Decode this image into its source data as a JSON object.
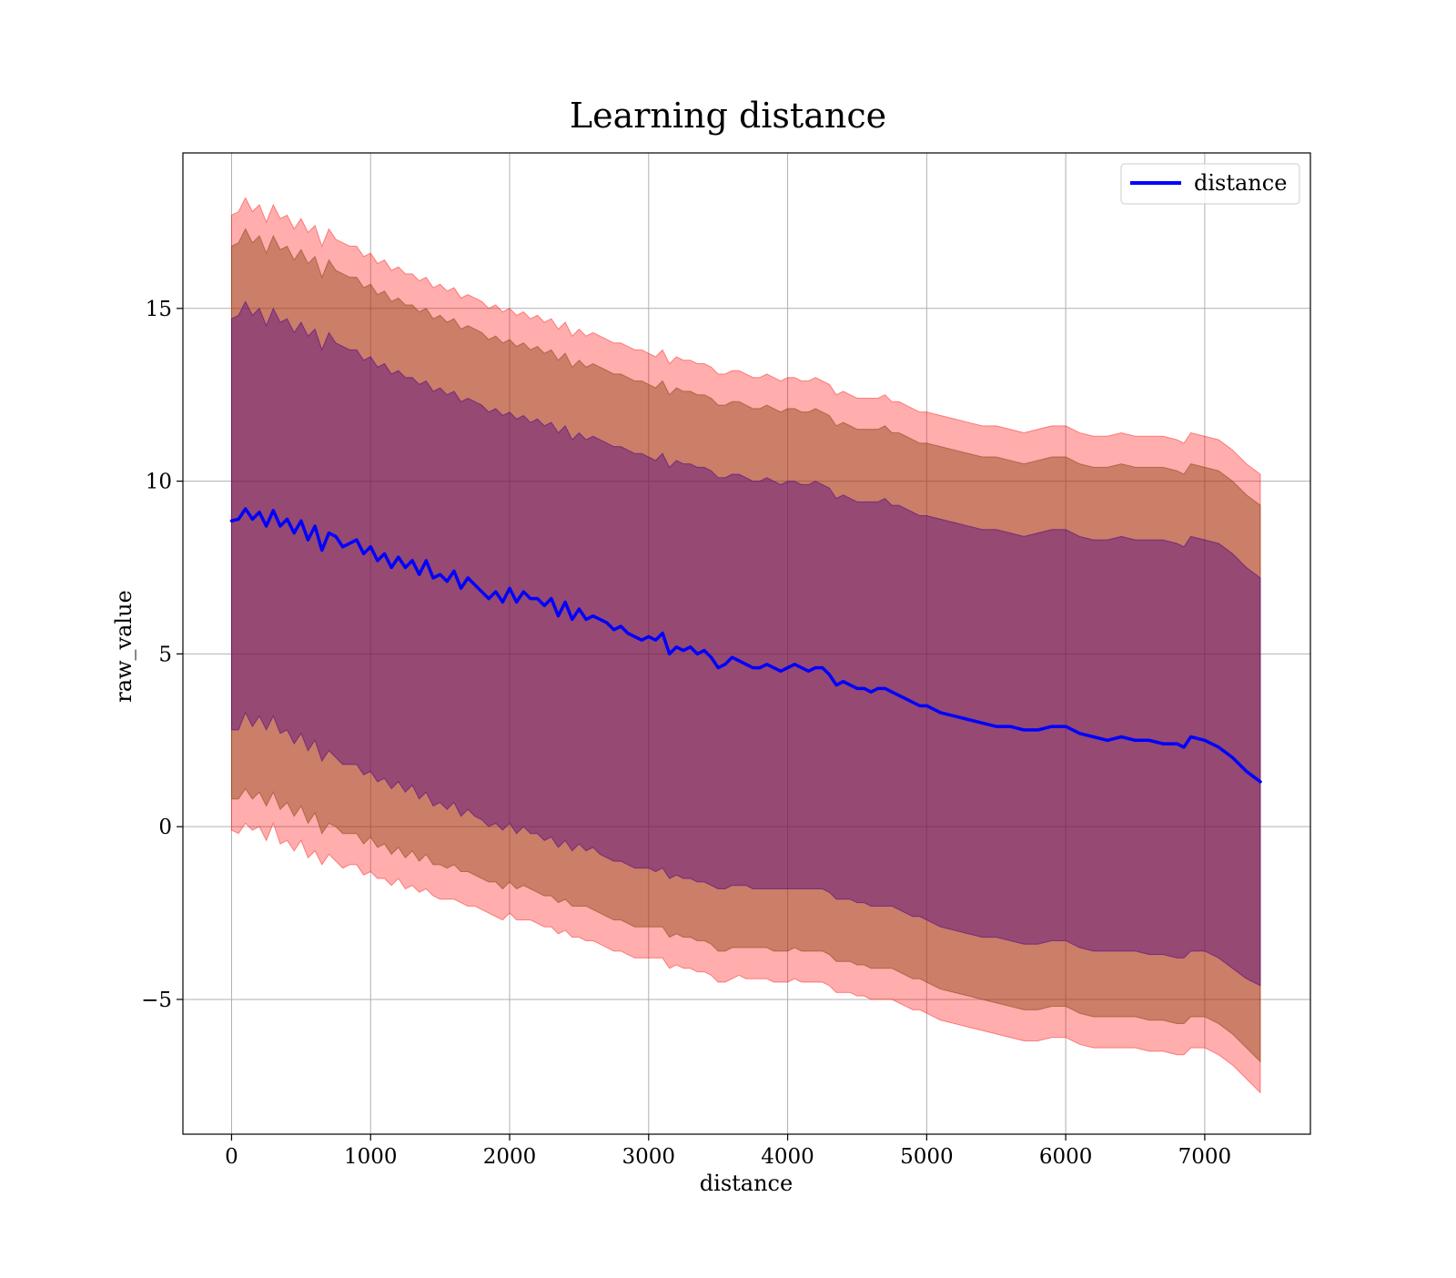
{
  "colors": {
    "line": "#0000ff",
    "band_outer": "#ff0000",
    "band_middle": "#8b4513",
    "band_inner": "#4b0082",
    "grid": "#b0b0b0",
    "axis": "#000000"
  },
  "chart_data": {
    "type": "line",
    "title": "Learning distance",
    "xlabel": "distance",
    "ylabel": "raw_value",
    "xlim": [
      -350,
      7760
    ],
    "ylim": [
      -8.9,
      19.5
    ],
    "xticks": [
      0,
      1000,
      2000,
      3000,
      4000,
      5000,
      6000,
      7000
    ],
    "yticks": [
      -5,
      0,
      5,
      10,
      15
    ],
    "xtick_labels": [
      "0",
      "1000",
      "2000",
      "3000",
      "4000",
      "5000",
      "6000",
      "7000"
    ],
    "ytick_labels": [
      "−5",
      "0",
      "5",
      "10",
      "15"
    ],
    "grid": true,
    "legend": {
      "position": "top-right",
      "entries": [
        "distance"
      ]
    },
    "series": [
      {
        "name": "distance",
        "x": [
          0,
          50,
          100,
          150,
          200,
          250,
          300,
          350,
          400,
          450,
          500,
          550,
          600,
          650,
          700,
          750,
          800,
          850,
          900,
          950,
          1000,
          1050,
          1100,
          1150,
          1200,
          1250,
          1300,
          1350,
          1400,
          1450,
          1500,
          1550,
          1600,
          1650,
          1700,
          1750,
          1800,
          1850,
          1900,
          1950,
          2000,
          2050,
          2100,
          2150,
          2200,
          2250,
          2300,
          2350,
          2400,
          2450,
          2500,
          2550,
          2600,
          2650,
          2700,
          2750,
          2800,
          2850,
          2900,
          2950,
          3000,
          3050,
          3100,
          3150,
          3200,
          3250,
          3300,
          3350,
          3400,
          3450,
          3500,
          3550,
          3600,
          3650,
          3700,
          3750,
          3800,
          3850,
          3900,
          3950,
          4000,
          4050,
          4100,
          4150,
          4200,
          4250,
          4300,
          4350,
          4400,
          4450,
          4500,
          4550,
          4600,
          4650,
          4700,
          4750,
          4800,
          4850,
          4900,
          4950,
          5000,
          5100,
          5200,
          5300,
          5400,
          5500,
          5600,
          5700,
          5800,
          5900,
          6000,
          6100,
          6200,
          6300,
          6400,
          6500,
          6600,
          6700,
          6800,
          6850,
          6900,
          7000,
          7100,
          7200,
          7300,
          7400
        ],
        "y": [
          8.85,
          8.9,
          9.2,
          8.9,
          9.1,
          8.7,
          9.15,
          8.7,
          8.9,
          8.5,
          8.85,
          8.3,
          8.7,
          8.0,
          8.5,
          8.4,
          8.1,
          8.2,
          8.3,
          7.9,
          8.1,
          7.7,
          7.9,
          7.5,
          7.8,
          7.5,
          7.7,
          7.3,
          7.7,
          7.2,
          7.3,
          7.1,
          7.4,
          6.9,
          7.2,
          7.0,
          6.8,
          6.6,
          6.8,
          6.5,
          6.9,
          6.5,
          6.8,
          6.6,
          6.6,
          6.4,
          6.6,
          6.1,
          6.5,
          6.0,
          6.3,
          6.0,
          6.1,
          6.0,
          5.9,
          5.7,
          5.8,
          5.6,
          5.5,
          5.4,
          5.5,
          5.4,
          5.6,
          5.0,
          5.2,
          5.1,
          5.2,
          5.0,
          5.1,
          4.9,
          4.6,
          4.7,
          4.9,
          4.8,
          4.7,
          4.6,
          4.6,
          4.7,
          4.6,
          4.5,
          4.6,
          4.7,
          4.6,
          4.5,
          4.6,
          4.6,
          4.4,
          4.1,
          4.2,
          4.1,
          4.0,
          4.0,
          3.9,
          4.0,
          4.0,
          3.9,
          3.8,
          3.7,
          3.6,
          3.5,
          3.5,
          3.3,
          3.2,
          3.1,
          3.0,
          2.9,
          2.9,
          2.8,
          2.8,
          2.9,
          2.9,
          2.7,
          2.6,
          2.5,
          2.6,
          2.5,
          2.5,
          2.4,
          2.4,
          2.3,
          2.6,
          2.5,
          2.3,
          2.0,
          1.6,
          1.3
        ]
      }
    ],
    "bands": [
      {
        "sigma": 3,
        "lower": [
          -0.1,
          -0.2,
          0.1,
          -0.1,
          0.0,
          -0.4,
          0.1,
          -0.5,
          -0.4,
          -0.7,
          -0.4,
          -0.9,
          -0.7,
          -1.1,
          -0.8,
          -1.0,
          -1.2,
          -1.1,
          -1.1,
          -1.4,
          -1.3,
          -1.5,
          -1.5,
          -1.7,
          -1.5,
          -1.8,
          -1.7,
          -1.9,
          -1.8,
          -2.0,
          -2.1,
          -2.1,
          -2.1,
          -2.2,
          -2.3,
          -2.3,
          -2.4,
          -2.5,
          -2.6,
          -2.7,
          -2.5,
          -2.7,
          -2.7,
          -2.7,
          -2.8,
          -2.9,
          -2.9,
          -3.1,
          -3.0,
          -3.2,
          -3.2,
          -3.3,
          -3.3,
          -3.4,
          -3.5,
          -3.6,
          -3.6,
          -3.7,
          -3.8,
          -3.8,
          -3.8,
          -3.8,
          -3.8,
          -4.1,
          -4.0,
          -4.1,
          -4.1,
          -4.2,
          -4.2,
          -4.3,
          -4.5,
          -4.5,
          -4.4,
          -4.3,
          -4.4,
          -4.4,
          -4.4,
          -4.4,
          -4.5,
          -4.5,
          -4.5,
          -4.4,
          -4.5,
          -4.5,
          -4.5,
          -4.5,
          -4.6,
          -4.8,
          -4.8,
          -4.8,
          -4.9,
          -4.9,
          -5.0,
          -5.0,
          -5.0,
          -5.0,
          -5.1,
          -5.2,
          -5.3,
          -5.3,
          -5.4,
          -5.6,
          -5.7,
          -5.8,
          -5.9,
          -6.0,
          -6.1,
          -6.2,
          -6.2,
          -6.1,
          -6.1,
          -6.3,
          -6.4,
          -6.4,
          -6.4,
          -6.4,
          -6.5,
          -6.5,
          -6.6,
          -6.6,
          -6.4,
          -6.4,
          -6.6,
          -6.9,
          -7.3,
          -7.7
        ],
        "upper": [
          17.7,
          17.8,
          18.2,
          17.8,
          18.0,
          17.5,
          18.0,
          17.6,
          17.7,
          17.3,
          17.6,
          17.2,
          17.4,
          16.8,
          17.3,
          17.0,
          16.9,
          16.8,
          16.8,
          16.5,
          16.6,
          16.3,
          16.4,
          16.1,
          16.2,
          16.0,
          16.0,
          15.8,
          15.9,
          15.6,
          15.7,
          15.5,
          15.6,
          15.3,
          15.4,
          15.3,
          15.2,
          15.0,
          15.1,
          14.9,
          15.0,
          14.8,
          14.9,
          14.7,
          14.8,
          14.6,
          14.7,
          14.4,
          14.6,
          14.2,
          14.4,
          14.2,
          14.3,
          14.2,
          14.1,
          14.0,
          14.0,
          13.9,
          13.8,
          13.8,
          13.7,
          13.6,
          13.8,
          13.4,
          13.6,
          13.5,
          13.5,
          13.4,
          13.4,
          13.3,
          13.1,
          13.1,
          13.2,
          13.2,
          13.1,
          13.0,
          13.0,
          13.1,
          13.0,
          12.9,
          13.0,
          13.0,
          12.9,
          12.9,
          13.0,
          12.9,
          12.8,
          12.5,
          12.6,
          12.5,
          12.4,
          12.4,
          12.4,
          12.4,
          12.5,
          12.3,
          12.3,
          12.2,
          12.1,
          12.0,
          12.0,
          11.9,
          11.8,
          11.7,
          11.6,
          11.6,
          11.5,
          11.4,
          11.5,
          11.6,
          11.6,
          11.4,
          11.3,
          11.3,
          11.4,
          11.3,
          11.3,
          11.3,
          11.2,
          11.1,
          11.4,
          11.3,
          11.2,
          10.9,
          10.5,
          10.2
        ]
      },
      {
        "sigma": 2,
        "lower": [
          0.8,
          0.8,
          1.1,
          0.8,
          1.0,
          0.6,
          1.0,
          0.5,
          0.7,
          0.3,
          0.6,
          0.1,
          0.4,
          -0.2,
          0.1,
          0.0,
          -0.2,
          -0.2,
          -0.2,
          -0.5,
          -0.3,
          -0.6,
          -0.5,
          -0.8,
          -0.6,
          -0.9,
          -0.7,
          -1.0,
          -0.8,
          -1.1,
          -1.1,
          -1.2,
          -1.1,
          -1.3,
          -1.3,
          -1.4,
          -1.5,
          -1.6,
          -1.6,
          -1.8,
          -1.6,
          -1.8,
          -1.7,
          -1.8,
          -1.9,
          -2.0,
          -2.0,
          -2.2,
          -2.1,
          -2.3,
          -2.3,
          -2.3,
          -2.4,
          -2.5,
          -2.6,
          -2.7,
          -2.7,
          -2.8,
          -2.9,
          -2.9,
          -2.9,
          -2.9,
          -2.9,
          -3.2,
          -3.1,
          -3.2,
          -3.2,
          -3.3,
          -3.3,
          -3.4,
          -3.6,
          -3.6,
          -3.5,
          -3.5,
          -3.5,
          -3.5,
          -3.5,
          -3.5,
          -3.6,
          -3.6,
          -3.6,
          -3.5,
          -3.6,
          -3.6,
          -3.6,
          -3.6,
          -3.7,
          -3.9,
          -3.9,
          -3.9,
          -4.0,
          -4.0,
          -4.1,
          -4.1,
          -4.1,
          -4.1,
          -4.2,
          -4.3,
          -4.4,
          -4.4,
          -4.5,
          -4.7,
          -4.8,
          -4.9,
          -5.0,
          -5.1,
          -5.2,
          -5.3,
          -5.3,
          -5.2,
          -5.2,
          -5.4,
          -5.5,
          -5.5,
          -5.5,
          -5.5,
          -5.6,
          -5.6,
          -5.7,
          -5.7,
          -5.5,
          -5.5,
          -5.7,
          -6.0,
          -6.4,
          -6.8
        ],
        "upper": [
          16.8,
          16.9,
          17.3,
          16.9,
          17.1,
          16.6,
          17.1,
          16.7,
          16.8,
          16.4,
          16.7,
          16.3,
          16.5,
          15.9,
          16.4,
          16.1,
          16.0,
          15.9,
          15.9,
          15.6,
          15.7,
          15.4,
          15.5,
          15.2,
          15.3,
          15.1,
          15.1,
          14.9,
          15.0,
          14.7,
          14.8,
          14.6,
          14.7,
          14.4,
          14.5,
          14.4,
          14.3,
          14.1,
          14.2,
          14.0,
          14.1,
          13.9,
          14.0,
          13.8,
          13.9,
          13.7,
          13.8,
          13.5,
          13.7,
          13.3,
          13.5,
          13.3,
          13.4,
          13.3,
          13.2,
          13.1,
          13.1,
          13.0,
          12.9,
          12.9,
          12.8,
          12.7,
          12.9,
          12.5,
          12.7,
          12.6,
          12.6,
          12.5,
          12.5,
          12.4,
          12.2,
          12.2,
          12.3,
          12.3,
          12.2,
          12.1,
          12.1,
          12.2,
          12.1,
          12.0,
          12.1,
          12.1,
          12.0,
          12.0,
          12.1,
          12.0,
          11.9,
          11.6,
          11.7,
          11.6,
          11.5,
          11.5,
          11.5,
          11.5,
          11.6,
          11.4,
          11.4,
          11.3,
          11.2,
          11.1,
          11.1,
          11.0,
          10.9,
          10.8,
          10.7,
          10.7,
          10.6,
          10.5,
          10.6,
          10.7,
          10.7,
          10.5,
          10.4,
          10.4,
          10.5,
          10.4,
          10.4,
          10.4,
          10.3,
          10.2,
          10.5,
          10.4,
          10.3,
          10.0,
          9.6,
          9.3
        ]
      },
      {
        "sigma": 1,
        "lower": [
          2.8,
          2.8,
          3.3,
          2.9,
          3.2,
          2.8,
          3.2,
          2.7,
          2.8,
          2.4,
          2.7,
          2.2,
          2.5,
          1.9,
          2.2,
          2.0,
          1.8,
          1.8,
          1.8,
          1.5,
          1.6,
          1.3,
          1.4,
          1.1,
          1.3,
          1.0,
          1.2,
          0.8,
          1.0,
          0.6,
          0.7,
          0.5,
          0.7,
          0.3,
          0.5,
          0.3,
          0.2,
          0.0,
          0.1,
          -0.1,
          0.1,
          -0.2,
          0.0,
          -0.2,
          -0.2,
          -0.4,
          -0.3,
          -0.6,
          -0.4,
          -0.7,
          -0.5,
          -0.7,
          -0.6,
          -0.8,
          -0.9,
          -1.0,
          -1.0,
          -1.1,
          -1.2,
          -1.2,
          -1.2,
          -1.3,
          -1.2,
          -1.5,
          -1.4,
          -1.5,
          -1.5,
          -1.6,
          -1.6,
          -1.7,
          -1.8,
          -1.8,
          -1.7,
          -1.7,
          -1.7,
          -1.8,
          -1.8,
          -1.8,
          -1.8,
          -1.8,
          -1.8,
          -1.8,
          -1.8,
          -1.8,
          -1.8,
          -1.8,
          -1.9,
          -2.1,
          -2.1,
          -2.1,
          -2.2,
          -2.2,
          -2.3,
          -2.3,
          -2.3,
          -2.3,
          -2.4,
          -2.5,
          -2.6,
          -2.6,
          -2.7,
          -2.9,
          -3.0,
          -3.1,
          -3.2,
          -3.2,
          -3.3,
          -3.4,
          -3.4,
          -3.3,
          -3.3,
          -3.5,
          -3.6,
          -3.6,
          -3.6,
          -3.6,
          -3.7,
          -3.7,
          -3.8,
          -3.8,
          -3.6,
          -3.6,
          -3.8,
          -4.1,
          -4.4,
          -4.6
        ],
        "upper": [
          14.7,
          14.8,
          15.2,
          14.8,
          15.0,
          14.5,
          15.0,
          14.6,
          14.7,
          14.3,
          14.6,
          14.2,
          14.4,
          13.8,
          14.3,
          14.0,
          13.9,
          13.8,
          13.8,
          13.5,
          13.6,
          13.3,
          13.4,
          13.1,
          13.2,
          13.0,
          13.0,
          12.8,
          12.9,
          12.6,
          12.7,
          12.5,
          12.6,
          12.3,
          12.4,
          12.3,
          12.2,
          12.0,
          12.1,
          11.9,
          12.0,
          11.8,
          11.9,
          11.7,
          11.8,
          11.6,
          11.7,
          11.4,
          11.6,
          11.2,
          11.4,
          11.2,
          11.3,
          11.2,
          11.1,
          11.0,
          11.0,
          10.9,
          10.8,
          10.8,
          10.7,
          10.6,
          10.8,
          10.4,
          10.6,
          10.5,
          10.5,
          10.4,
          10.4,
          10.3,
          10.1,
          10.1,
          10.2,
          10.2,
          10.1,
          10.0,
          10.0,
          10.1,
          10.0,
          9.9,
          10.0,
          10.0,
          9.9,
          9.9,
          10.0,
          9.9,
          9.8,
          9.5,
          9.6,
          9.5,
          9.4,
          9.4,
          9.4,
          9.4,
          9.5,
          9.3,
          9.3,
          9.2,
          9.1,
          9.0,
          9.0,
          8.9,
          8.8,
          8.7,
          8.6,
          8.6,
          8.5,
          8.4,
          8.5,
          8.6,
          8.6,
          8.4,
          8.3,
          8.3,
          8.4,
          8.3,
          8.3,
          8.3,
          8.2,
          8.1,
          8.4,
          8.3,
          8.2,
          7.9,
          7.5,
          7.2
        ]
      }
    ]
  }
}
